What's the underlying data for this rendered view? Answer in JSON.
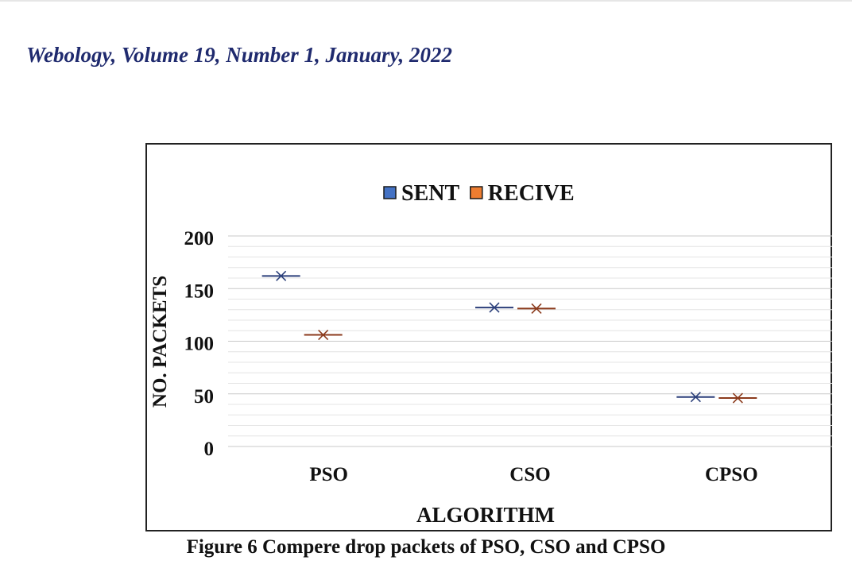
{
  "header": {
    "journal": "Webology, Volume 19, Number 1, January, 2022"
  },
  "caption": "Figure 6 Compere drop packets of PSO, CSO and CPSO",
  "chart_data": {
    "type": "scatter",
    "title": "",
    "xlabel": "ALGORITHM",
    "ylabel": "NO. PACKETS",
    "categories": [
      "PSO",
      "CSO",
      "CPSO"
    ],
    "ylim": [
      0,
      200
    ],
    "yticks": [
      0,
      50,
      100,
      150,
      200
    ],
    "grid": true,
    "legend_position": "top-center",
    "series": [
      {
        "name": "SENT",
        "color": "#4472c4",
        "line_color": "#2b3f7a",
        "values": [
          162,
          132,
          47
        ]
      },
      {
        "name": "RECIVE",
        "color": "#ed7d31",
        "line_color": "#8b3a1c",
        "values": [
          106,
          131,
          46
        ]
      }
    ]
  }
}
